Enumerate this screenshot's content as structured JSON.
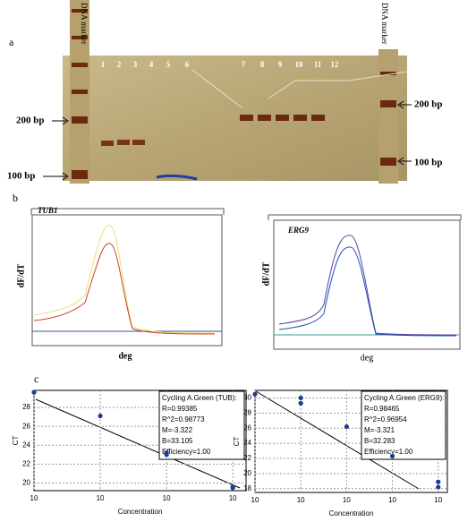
{
  "panels": {
    "a": {
      "label": "a",
      "left_marker": "DNA marker",
      "right_marker": "DNA marker",
      "lanes": [
        "1",
        "2",
        "3",
        "4",
        "5",
        "6",
        "7",
        "8",
        "9",
        "10",
        "11",
        "12"
      ],
      "left_bands": [
        "200 bp",
        "100 bp"
      ],
      "right_bands": [
        "200 bp",
        "100 bp"
      ]
    },
    "b": {
      "label": "b",
      "left": {
        "title": "TUB1",
        "ylabel": "dF/dT",
        "xlabel": "deg"
      },
      "right": {
        "title": "ERG9",
        "ylabel": "dF/dT",
        "xlabel": "deg"
      }
    },
    "c": {
      "label": "c",
      "left": {
        "type": "scatter",
        "ylabel": "CT",
        "xlabel": "Concentration",
        "x": [
          0,
          1,
          2,
          2,
          3,
          3
        ],
        "values": [
          29.6,
          27.1,
          23.2,
          23.0,
          19.6,
          19.5
        ],
        "xlim": [
          0,
          3.2
        ],
        "xticks": [
          {
            "value": 0,
            "label": "10"
          },
          {
            "value": 1,
            "label": "10"
          },
          {
            "value": 2,
            "label": "10"
          },
          {
            "value": 3,
            "label": "10"
          }
        ],
        "ylim": [
          19.2,
          29.8
        ],
        "yticks": [
          20,
          22,
          24,
          26,
          28
        ],
        "grid": true,
        "color": "#1f3a93",
        "legend": [
          "Cycling A.Green (TUB):",
          "R=0.99385",
          "R^2=0.98773",
          "M=-3.322",
          "B=33.105",
          "Efficiency=1.00"
        ]
      },
      "right": {
        "type": "scatter",
        "ylabel": "CT",
        "xlabel": "Concentration",
        "x": [
          0,
          1,
          1,
          2,
          3,
          4,
          4
        ],
        "values": [
          30.5,
          30.0,
          29.3,
          26.2,
          22.3,
          18.9,
          18.2
        ],
        "xlim": [
          0,
          4.2
        ],
        "xticks": [
          {
            "value": 0,
            "label": "10"
          },
          {
            "value": 1,
            "label": "10"
          },
          {
            "value": 2,
            "label": "10"
          },
          {
            "value": 3,
            "label": "10"
          },
          {
            "value": 4,
            "label": "10"
          }
        ],
        "ylim": [
          17.5,
          31
        ],
        "yticks": [
          18,
          20,
          22,
          24,
          26,
          28,
          30
        ],
        "grid": true,
        "color": "#1f3a93",
        "legend": [
          "Cycling A.Green (ERG9):",
          "R=0.98465",
          "R^2=0.96954",
          "M=-3.321",
          "B=32.283",
          "Efficiency=1.00"
        ]
      }
    }
  }
}
